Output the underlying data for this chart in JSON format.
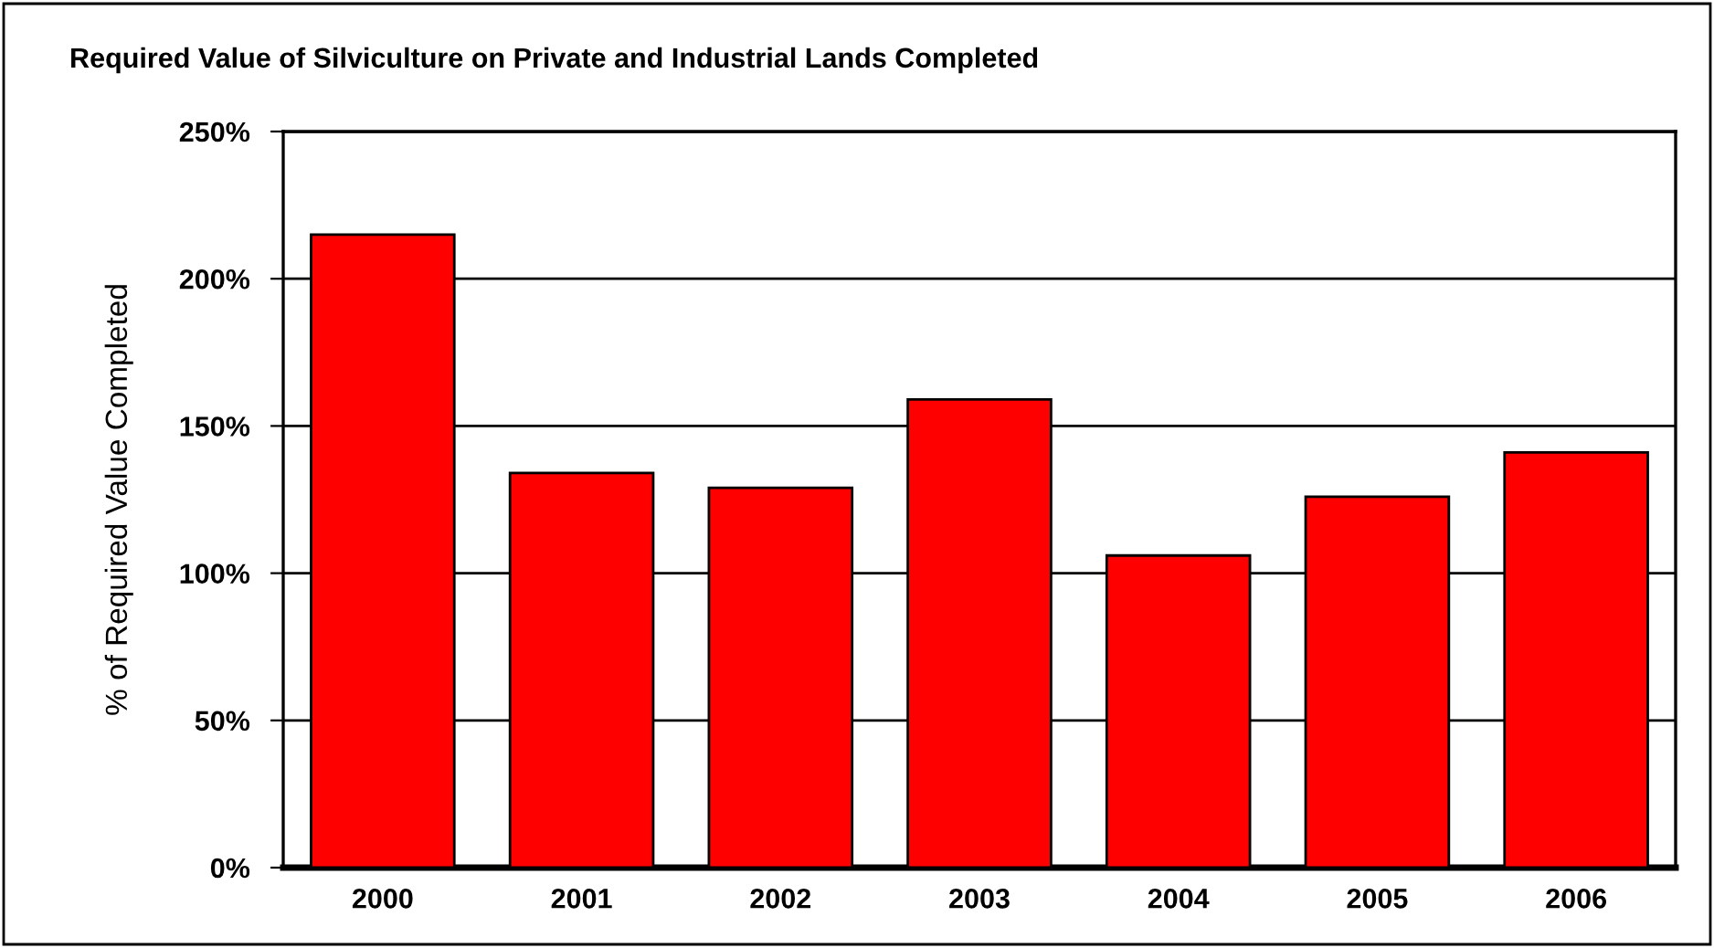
{
  "chart_data": {
    "type": "bar",
    "title": "Required Value of Silviculture on Private and Industrial Lands Completed",
    "ylabel": "% of Required Value Completed",
    "categories": [
      "2000",
      "2001",
      "2002",
      "2003",
      "2004",
      "2005",
      "2006"
    ],
    "values": [
      215,
      134,
      129,
      159,
      106,
      126,
      141
    ],
    "color": "#ff0000",
    "ylim": [
      0,
      250
    ],
    "yticks": [
      {
        "value": 0,
        "label": "0%"
      },
      {
        "value": 50,
        "label": "50%"
      },
      {
        "value": 100,
        "label": "100%"
      },
      {
        "value": 150,
        "label": "150%"
      },
      {
        "value": 200,
        "label": "200%"
      },
      {
        "value": 250,
        "label": "250%"
      }
    ],
    "grid": "y"
  }
}
